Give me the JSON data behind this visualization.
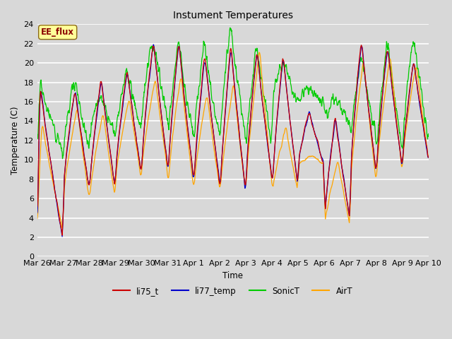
{
  "title": "Instument Temperatures",
  "xlabel": "Time",
  "ylabel": "Temperature (C)",
  "ylim": [
    0,
    24
  ],
  "yticks": [
    0,
    2,
    4,
    6,
    8,
    10,
    12,
    14,
    16,
    18,
    20,
    22,
    24
  ],
  "bg_color": "#D8D8D8",
  "plot_bg_color": "#D8D8D8",
  "grid_color": "#FFFFFF",
  "annotation_text": "EE_flux",
  "annotation_color": "#8B0000",
  "annotation_bg": "#FFFF99",
  "annotation_border": "#8B6914",
  "series_colors": {
    "li75_t": "#CC0000",
    "li77_temp": "#0000CC",
    "SonicT": "#00CC00",
    "AirT": "#FFA500"
  },
  "legend_labels": [
    "li75_t",
    "li77_temp",
    "SonicT",
    "AirT"
  ],
  "x_tick_labels": [
    "Mar 26",
    "Mar 27",
    "Mar 28",
    "Mar 29",
    "Mar 30",
    "Mar 31",
    "Apr 1",
    "Apr 2",
    "Apr 3",
    "Apr 4",
    "Apr 5",
    "Apr 6",
    "Apr 7",
    "Apr 8",
    "Apr 9",
    "Apr 10"
  ],
  "num_days": 15,
  "points_per_day": 96
}
